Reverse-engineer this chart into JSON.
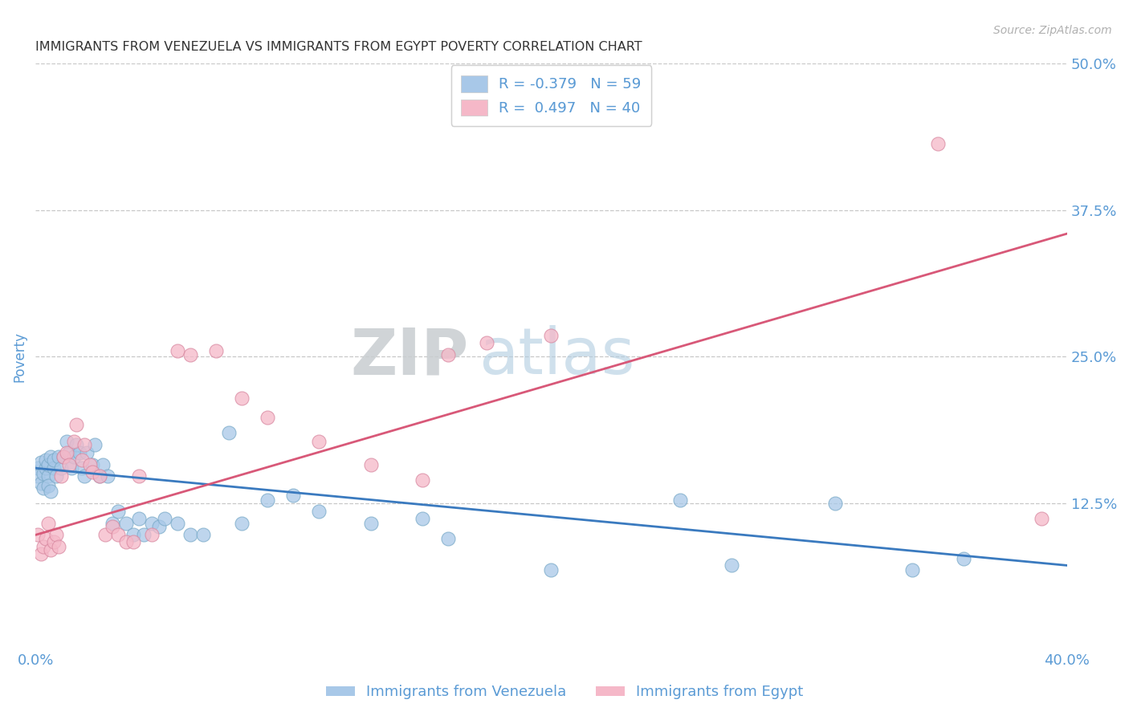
{
  "title": "IMMIGRANTS FROM VENEZUELA VS IMMIGRANTS FROM EGYPT POVERTY CORRELATION CHART",
  "source": "Source: ZipAtlas.com",
  "ylabel": "Poverty",
  "xlim": [
    0.0,
    0.4
  ],
  "ylim": [
    0.0,
    0.5
  ],
  "xticks": [
    0.0,
    0.1,
    0.2,
    0.3,
    0.4
  ],
  "yticks": [
    0.0,
    0.125,
    0.25,
    0.375,
    0.5
  ],
  "ytick_labels": [
    "",
    "12.5%",
    "25.0%",
    "37.5%",
    "50.0%"
  ],
  "xtick_labels": [
    "0.0%",
    "",
    "",
    "",
    "40.0%"
  ],
  "watermark_zip": "ZIP",
  "watermark_atlas": "atlas",
  "legend_entries": [
    {
      "label_r": "R = -0.379",
      "label_n": "N = 59",
      "color": "#a8c8e8"
    },
    {
      "label_r": "R =  0.497",
      "label_n": "N = 40",
      "color": "#f5b8c8"
    }
  ],
  "series": [
    {
      "name": "Immigrants from Venezuela",
      "color": "#a8c8e8",
      "edgecolor": "#7aaac8",
      "x": [
        0.001,
        0.001,
        0.002,
        0.002,
        0.003,
        0.003,
        0.004,
        0.004,
        0.005,
        0.005,
        0.005,
        0.006,
        0.006,
        0.007,
        0.007,
        0.008,
        0.009,
        0.01,
        0.011,
        0.012,
        0.013,
        0.014,
        0.015,
        0.016,
        0.017,
        0.018,
        0.019,
        0.02,
        0.022,
        0.023,
        0.025,
        0.026,
        0.028,
        0.03,
        0.032,
        0.035,
        0.038,
        0.04,
        0.042,
        0.045,
        0.048,
        0.05,
        0.055,
        0.06,
        0.065,
        0.075,
        0.08,
        0.09,
        0.1,
        0.11,
        0.13,
        0.15,
        0.16,
        0.2,
        0.25,
        0.27,
        0.31,
        0.34,
        0.36
      ],
      "y": [
        0.155,
        0.148,
        0.16,
        0.142,
        0.15,
        0.138,
        0.155,
        0.162,
        0.148,
        0.14,
        0.158,
        0.165,
        0.135,
        0.155,
        0.162,
        0.148,
        0.165,
        0.155,
        0.165,
        0.178,
        0.168,
        0.155,
        0.165,
        0.175,
        0.168,
        0.155,
        0.148,
        0.168,
        0.158,
        0.175,
        0.148,
        0.158,
        0.148,
        0.108,
        0.118,
        0.108,
        0.098,
        0.112,
        0.098,
        0.108,
        0.105,
        0.112,
        0.108,
        0.098,
        0.098,
        0.185,
        0.108,
        0.128,
        0.132,
        0.118,
        0.108,
        0.112,
        0.095,
        0.068,
        0.128,
        0.072,
        0.125,
        0.068,
        0.078
      ]
    },
    {
      "name": "Immigrants from Egypt",
      "color": "#f5b8c8",
      "edgecolor": "#d888a0",
      "x": [
        0.001,
        0.002,
        0.003,
        0.004,
        0.005,
        0.006,
        0.007,
        0.008,
        0.009,
        0.01,
        0.011,
        0.012,
        0.013,
        0.015,
        0.016,
        0.018,
        0.019,
        0.021,
        0.022,
        0.025,
        0.027,
        0.03,
        0.032,
        0.035,
        0.038,
        0.04,
        0.045,
        0.055,
        0.06,
        0.07,
        0.08,
        0.09,
        0.11,
        0.13,
        0.15,
        0.16,
        0.175,
        0.2,
        0.35,
        0.39
      ],
      "y": [
        0.098,
        0.082,
        0.088,
        0.095,
        0.108,
        0.085,
        0.092,
        0.098,
        0.088,
        0.148,
        0.165,
        0.168,
        0.158,
        0.178,
        0.192,
        0.162,
        0.175,
        0.158,
        0.152,
        0.148,
        0.098,
        0.105,
        0.098,
        0.092,
        0.092,
        0.148,
        0.098,
        0.255,
        0.252,
        0.255,
        0.215,
        0.198,
        0.178,
        0.158,
        0.145,
        0.252,
        0.262,
        0.268,
        0.432,
        0.112
      ]
    }
  ],
  "trend_lines": [
    {
      "color": "#3a7abf",
      "x_start": 0.0,
      "x_end": 0.4,
      "y_start": 0.155,
      "y_end": 0.072
    },
    {
      "color": "#d85878",
      "x_start": 0.0,
      "x_end": 0.4,
      "y_start": 0.098,
      "y_end": 0.355
    }
  ],
  "background_color": "#ffffff",
  "grid_color": "#c8c8c8",
  "title_color": "#333333",
  "axis_label_color": "#5b9bd5",
  "tick_color": "#5b9bd5"
}
